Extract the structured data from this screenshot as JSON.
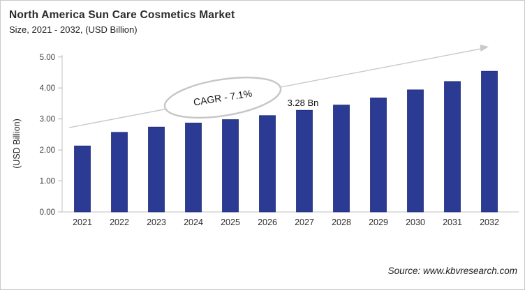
{
  "header": {
    "title": "North America Sun Care Cosmetics Market",
    "subtitle": "Size, 2021 - 2032, (USD Billion)"
  },
  "chart_data": {
    "type": "bar",
    "title": "North America Sun Care Cosmetics Market",
    "subtitle": "Size, 2021 - 2032, (USD Billion)",
    "categories": [
      "2021",
      "2022",
      "2023",
      "2024",
      "2025",
      "2026",
      "2027",
      "2028",
      "2029",
      "2030",
      "2031",
      "2032"
    ],
    "values": [
      2.13,
      2.57,
      2.74,
      2.87,
      2.98,
      3.11,
      3.28,
      3.45,
      3.68,
      3.94,
      4.21,
      4.54
    ],
    "xlabel": "",
    "ylabel": "(USD Billion)",
    "ylim": [
      0,
      5
    ],
    "ytick_step": 1,
    "ytick_decimals": 2,
    "grid": false,
    "legend_position": "none",
    "bar_color": "#2b3a92",
    "bar_edge_color": "#202d78",
    "axis_color": "#c2c2c2",
    "trend_arrow_color": "#c9c9c9",
    "annotations": {
      "cagr_label": "CAGR - 7.1%",
      "value_label": "3.28 Bn",
      "value_label_category": "2027"
    }
  },
  "source": {
    "text": "Source: www.kbvresearch.com"
  }
}
